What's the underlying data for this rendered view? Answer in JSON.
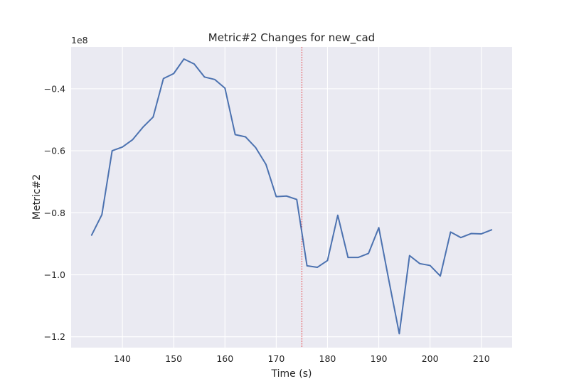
{
  "chart_data": {
    "type": "line",
    "title": "Metric#2 Changes for new_cad",
    "xlabel": "Time (s)",
    "ylabel": "Metric#2",
    "y_offset_label": "1e8",
    "xlim": [
      130,
      216
    ],
    "ylim": [
      -1.235,
      -0.265
    ],
    "x_ticks": [
      140,
      150,
      160,
      170,
      180,
      190,
      200,
      210
    ],
    "y_ticks": [
      -1.2,
      -1.0,
      -0.8,
      -0.6,
      -0.4
    ],
    "y_tick_labels": [
      "−1.2",
      "−1.0",
      "−0.8",
      "−0.6",
      "−0.4"
    ],
    "grid": true,
    "vline_x": 175,
    "colors": {
      "line": "#4c72b0",
      "vline": "#e41a1c",
      "plot_bg": "#eaeaf2",
      "grid": "#ffffff"
    },
    "series": [
      {
        "x": [
          134,
          136,
          138,
          140,
          142,
          144,
          146,
          148,
          150,
          152,
          154,
          156,
          158,
          160,
          162,
          164,
          166,
          168,
          170,
          172,
          174,
          176,
          178,
          180,
          182,
          184,
          186,
          188,
          190,
          192,
          194,
          196,
          198,
          200,
          202,
          204,
          206,
          208,
          210,
          212
        ],
        "values": [
          -0.872,
          -0.806,
          -0.6,
          -0.588,
          -0.564,
          -0.524,
          -0.491,
          -0.367,
          -0.351,
          -0.304,
          -0.32,
          -0.362,
          -0.37,
          -0.398,
          -0.548,
          -0.555,
          -0.59,
          -0.644,
          -0.748,
          -0.746,
          -0.757,
          -0.971,
          -0.976,
          -0.954,
          -0.808,
          -0.944,
          -0.944,
          -0.931,
          -0.848,
          -1.021,
          -1.19,
          -0.938,
          -0.964,
          -0.97,
          -1.004,
          -0.862,
          -0.88,
          -0.867,
          -0.868,
          -0.855
        ]
      }
    ]
  }
}
